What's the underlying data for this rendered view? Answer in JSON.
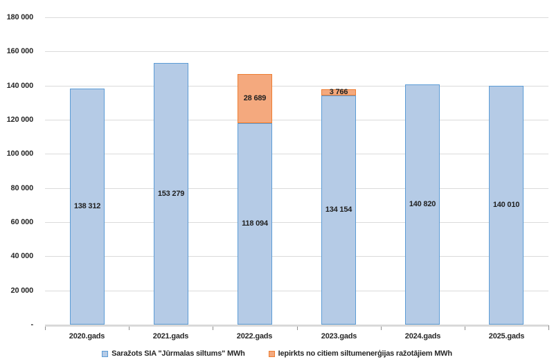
{
  "chart_data": {
    "type": "bar",
    "stacked": true,
    "title": "",
    "xlabel": "",
    "ylabel": "",
    "ylim": [
      0,
      180000
    ],
    "grid": true,
    "legend_position": "bottom",
    "categories": [
      "2020.gads",
      "2021.gads",
      "2022.gads",
      "2023.gads",
      "2024.gads",
      "2025.gads"
    ],
    "series": [
      {
        "name": "Saražots SIA \"Jūrmalas siltums\" MWh",
        "fill_color": "#b5cbe6",
        "border_color": "#5b9bd5",
        "values": [
          138312,
          153279,
          118094,
          134154,
          140820,
          140010
        ],
        "labels": [
          "138 312",
          "153 279",
          "118 094",
          "134 154",
          "140 820",
          "140 010"
        ]
      },
      {
        "name": "Iepirkts no citiem siltumenerģijas ražotājiem MWh",
        "fill_color": "#f4a97e",
        "border_color": "#ed7d31",
        "values": [
          0,
          0,
          28689,
          3766,
          0,
          0
        ],
        "labels": [
          "",
          "",
          "28 689",
          "3 766",
          "",
          ""
        ]
      }
    ],
    "yticks": [
      {
        "value": 180000,
        "label": "180 000"
      },
      {
        "value": 160000,
        "label": "160 000"
      },
      {
        "value": 140000,
        "label": "140 000"
      },
      {
        "value": 120000,
        "label": "120 000"
      },
      {
        "value": 100000,
        "label": "100 000"
      },
      {
        "value": 80000,
        "label": "80 000"
      },
      {
        "value": 60000,
        "label": "60 000"
      },
      {
        "value": 40000,
        "label": "40 000"
      },
      {
        "value": 20000,
        "label": "20 000"
      },
      {
        "value": 0,
        "label": "-"
      }
    ],
    "colors": {
      "gridline": "#dadada",
      "axis_line": "#d9d9d9",
      "text": "#262626"
    }
  }
}
